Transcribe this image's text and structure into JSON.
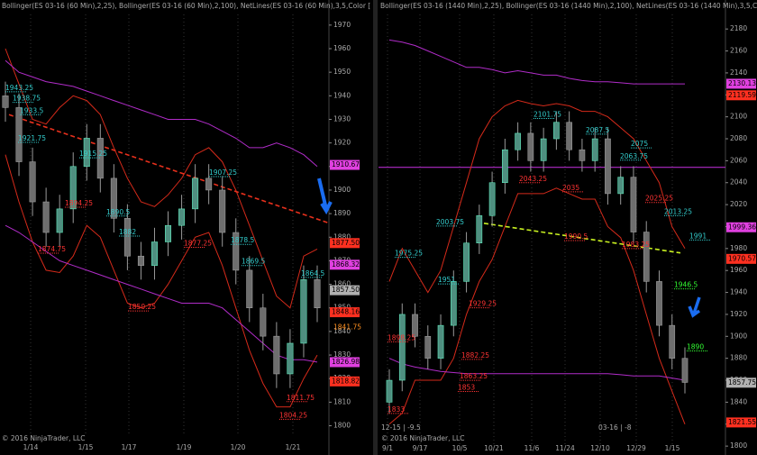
{
  "chart_data": [
    {
      "type": "candlestick",
      "title": "Bollinger(ES 03-16 (60 Min),2,25), Bollinger(ES 03-16 (60 Min),2,100), NetLines(ES 03-16 (60 Min),3,5,Color [Lime],Colo",
      "open": [
        1940,
        1935,
        1912,
        1895,
        1882,
        1892,
        1910,
        1922,
        1905,
        1888,
        1872,
        1868,
        1878,
        1885,
        1892,
        1905,
        1900,
        1882,
        1866,
        1850,
        1838,
        1822,
        1835,
        1862
      ],
      "high": [
        1946,
        1941,
        1918,
        1901,
        1898,
        1916,
        1928,
        1928,
        1911,
        1894,
        1878,
        1884,
        1891,
        1898,
        1911,
        1911,
        1906,
        1888,
        1872,
        1856,
        1844,
        1841,
        1868,
        1868
      ],
      "low": [
        1929,
        1906,
        1889,
        1876,
        1876,
        1886,
        1904,
        1899,
        1882,
        1866,
        1862,
        1862,
        1872,
        1879,
        1886,
        1894,
        1876,
        1860,
        1844,
        1832,
        1816,
        1816,
        1829,
        1844
      ],
      "close": [
        1935,
        1912,
        1895,
        1882,
        1892,
        1910,
        1922,
        1905,
        1888,
        1872,
        1868,
        1878,
        1885,
        1892,
        1905,
        1900,
        1882,
        1866,
        1850,
        1838,
        1822,
        1835,
        1862,
        1850
      ],
      "bands": [
        {
          "color": "#d42a1a",
          "values": [
            1960,
            1945,
            1930,
            1928,
            1935,
            1940,
            1938,
            1932,
            1918,
            1905,
            1895,
            1893,
            1898,
            1905,
            1915,
            1918,
            1912,
            1900,
            1885,
            1870,
            1855,
            1850,
            1872,
            1875
          ]
        },
        {
          "color": "#d42a1a",
          "values": [
            1915,
            1895,
            1878,
            1866,
            1865,
            1872,
            1885,
            1880,
            1866,
            1852,
            1850,
            1852,
            1860,
            1870,
            1880,
            1882,
            1868,
            1850,
            1832,
            1818,
            1808,
            1808,
            1820,
            1830
          ]
        },
        {
          "color": "#b02cc8",
          "values": [
            1955,
            1950,
            1948,
            1946,
            1945,
            1944,
            1942,
            1940,
            1938,
            1936,
            1934,
            1932,
            1930,
            1930,
            1930,
            1928,
            1925,
            1922,
            1918,
            1918,
            1920,
            1918,
            1915,
            1910
          ]
        },
        {
          "color": "#b02cc8",
          "values": [
            1885,
            1882,
            1878,
            1874,
            1870,
            1868,
            1866,
            1864,
            1862,
            1860,
            1858,
            1856,
            1854,
            1852,
            1852,
            1852,
            1850,
            1845,
            1840,
            1835,
            1830,
            1828,
            1828,
            1827
          ]
        }
      ],
      "trendline": {
        "color": "#e8301c",
        "values": [
          1932,
          1886
        ]
      },
      "ylim": [
        1796,
        1973
      ],
      "yticks": [
        1800,
        1810,
        1820,
        1830,
        1840,
        1850,
        1860,
        1870,
        1880,
        1890,
        1900,
        1910,
        1920,
        1930,
        1940,
        1950,
        1960,
        1970
      ],
      "x_labels": [
        "1/14",
        "1/15",
        "1/17",
        "1/19",
        "1/20",
        "1/21"
      ],
      "price_labels": [
        {
          "value": 1910.67,
          "color": "#e040e0"
        },
        {
          "value": 1877.5,
          "label": "1877.50",
          "color": "#ff3020"
        },
        {
          "value": 1868.32,
          "color": "#e040e0"
        },
        {
          "value": 1857.5,
          "label": "1857.50",
          "color": "#b0b0b0"
        },
        {
          "value": 1848.16,
          "color": "#ff3020"
        },
        {
          "value": 1841.75,
          "color": "#ff9020",
          "box": false
        },
        {
          "value": 1826.98,
          "color": "#e040e0"
        },
        {
          "value": 1818.82,
          "color": "#ff3020"
        }
      ],
      "annotations": [
        {
          "value": 1943.25,
          "color": "#3cc"
        },
        {
          "value": 1938.75,
          "color": "#3cc"
        },
        {
          "value": 1933.5,
          "color": "#3cc"
        },
        {
          "value": 1921.75,
          "color": "#3cc"
        },
        {
          "value": 1915.25,
          "color": "#3cc"
        },
        {
          "value": 1907.25,
          "color": "#3cc"
        },
        {
          "value": 1890.5,
          "color": "#3cc"
        },
        {
          "value": 1882,
          "color": "#3cc"
        },
        {
          "value": 1878.5,
          "color": "#3cc"
        },
        {
          "value": 1869.5,
          "color": "#3cc"
        },
        {
          "value": 1864.5,
          "color": "#3cc"
        },
        {
          "value": 1874.75,
          "color": "#f33"
        },
        {
          "value": 1894.25,
          "color": "#f33"
        },
        {
          "value": 1877.25,
          "color": "#f33"
        },
        {
          "value": 1850.25,
          "color": "#f33"
        },
        {
          "value": 1811.75,
          "color": "#f33"
        },
        {
          "value": 1804.25,
          "color": "#f33"
        }
      ],
      "footer": [
        "© 2016 NinjaTrader, LLC"
      ]
    },
    {
      "type": "candlestick",
      "title": "Bollinger(ES 03-16 (1440 Min),2,25), Bollinger(ES 03-16 (1440 Min),2,100), NetLines(ES 03-16 (1440 Min),3,5,Color [Li",
      "open": [
        1840,
        1860,
        1920,
        1900,
        1880,
        1910,
        1950,
        1985,
        2010,
        2040,
        2070,
        2085,
        2060,
        2080,
        2095,
        2070,
        2060,
        2080,
        2030,
        2045,
        1995,
        1950,
        1910,
        1880
      ],
      "high": [
        1870,
        1930,
        1930,
        1910,
        1920,
        1960,
        1995,
        2020,
        2050,
        2080,
        2095,
        2095,
        2090,
        2105,
        2105,
        2080,
        2090,
        2090,
        2055,
        2055,
        2005,
        1960,
        1920,
        1890
      ],
      "low": [
        1830,
        1850,
        1890,
        1870,
        1870,
        1900,
        1940,
        1975,
        2000,
        2030,
        2060,
        2050,
        2050,
        2070,
        2060,
        2050,
        2050,
        2020,
        2020,
        1985,
        1940,
        1900,
        1870,
        1848
      ],
      "close": [
        1860,
        1920,
        1900,
        1880,
        1910,
        1950,
        1985,
        2010,
        2040,
        2070,
        2085,
        2060,
        2080,
        2095,
        2070,
        2060,
        2080,
        2030,
        2045,
        1995,
        1950,
        1910,
        1880,
        1858
      ],
      "bands": [
        {
          "color": "#d42a1a",
          "values": [
            1950,
            1980,
            1960,
            1940,
            1960,
            2000,
            2040,
            2080,
            2100,
            2110,
            2115,
            2112,
            2110,
            2112,
            2110,
            2105,
            2105,
            2100,
            2090,
            2080,
            2060,
            2040,
            2000,
            1980
          ]
        },
        {
          "color": "#d42a1a",
          "values": [
            1820,
            1830,
            1860,
            1860,
            1860,
            1880,
            1920,
            1950,
            1970,
            2000,
            2030,
            2030,
            2030,
            2035,
            2030,
            2025,
            2025,
            2000,
            1990,
            1960,
            1920,
            1880,
            1850,
            1820
          ]
        },
        {
          "color": "#b02cc8",
          "values": [
            2170,
            2168,
            2165,
            2160,
            2155,
            2150,
            2145,
            2145,
            2143,
            2140,
            2142,
            2140,
            2138,
            2138,
            2135,
            2133,
            2132,
            2132,
            2131,
            2130,
            2130,
            2130,
            2130,
            2130
          ]
        },
        {
          "color": "#b02cc8",
          "values": [
            1880,
            1875,
            1872,
            1870,
            1868,
            1867,
            1866,
            1866,
            1866,
            1866,
            1866,
            1866,
            1866,
            1866,
            1866,
            1866,
            1866,
            1866,
            1865,
            1864,
            1864,
            1864,
            1862,
            1860
          ]
        }
      ],
      "trendline": {
        "color": "#c8f020",
        "values": [
          2003,
          1976
        ]
      },
      "hline": {
        "color": "#b02cc8",
        "value": 2054
      },
      "ylim": [
        1796,
        2190
      ],
      "yticks": [
        1800,
        1820,
        1840,
        1860,
        1880,
        1900,
        1920,
        1940,
        1960,
        1980,
        2000,
        2020,
        2040,
        2060,
        2080,
        2100,
        2120,
        2140,
        2160,
        2180
      ],
      "x_labels": [
        "9/1",
        "9/17",
        "10/5",
        "10/21",
        "11/6",
        "11/24",
        "12/10",
        "12/29",
        "1/15"
      ],
      "price_labels": [
        {
          "value": 2130.13,
          "color": "#e040e0"
        },
        {
          "value": 2119.59,
          "color": "#ff3020"
        },
        {
          "value": 1999.36,
          "color": "#e040e0"
        },
        {
          "value": 1970.57,
          "color": "#ff3020"
        },
        {
          "value": 1857.75,
          "color": "#b0b0b0"
        },
        {
          "value": 1821.55,
          "color": "#ff3020"
        }
      ],
      "annotations": [
        {
          "value": 2101.75,
          "color": "#3cc"
        },
        {
          "value": 2087.5,
          "color": "#3cc"
        },
        {
          "value": 2075,
          "color": "#3cc"
        },
        {
          "value": 2063.75,
          "color": "#3cc"
        },
        {
          "value": 2003.75,
          "color": "#3cc"
        },
        {
          "value": 1975.25,
          "color": "#3cc"
        },
        {
          "value": 1951,
          "color": "#3cc"
        },
        {
          "value": 2013.25,
          "color": "#3cc"
        },
        {
          "value": 1991,
          "color": "#3cc"
        },
        {
          "value": 1929.25,
          "color": "#f33"
        },
        {
          "value": 1898.25,
          "color": "#f33"
        },
        {
          "value": 1882.25,
          "color": "#f33"
        },
        {
          "value": 1863.25,
          "color": "#f33"
        },
        {
          "value": 1853,
          "color": "#f33"
        },
        {
          "value": 1833,
          "color": "#f33"
        },
        {
          "value": 2043.25,
          "color": "#f33"
        },
        {
          "value": 2035,
          "color": "#f33"
        },
        {
          "value": 2025.25,
          "color": "#f33"
        },
        {
          "value": 1990.5,
          "color": "#f33"
        },
        {
          "value": 1983.25,
          "color": "#f33"
        },
        {
          "value": 1946.5,
          "color": "#3f3"
        },
        {
          "value": 1890,
          "color": "#3f3"
        }
      ],
      "footer": [
        "© 2016 NinjaTrader, LLC",
        "12-15 | -9.5",
        "03-16 | -8"
      ]
    }
  ]
}
